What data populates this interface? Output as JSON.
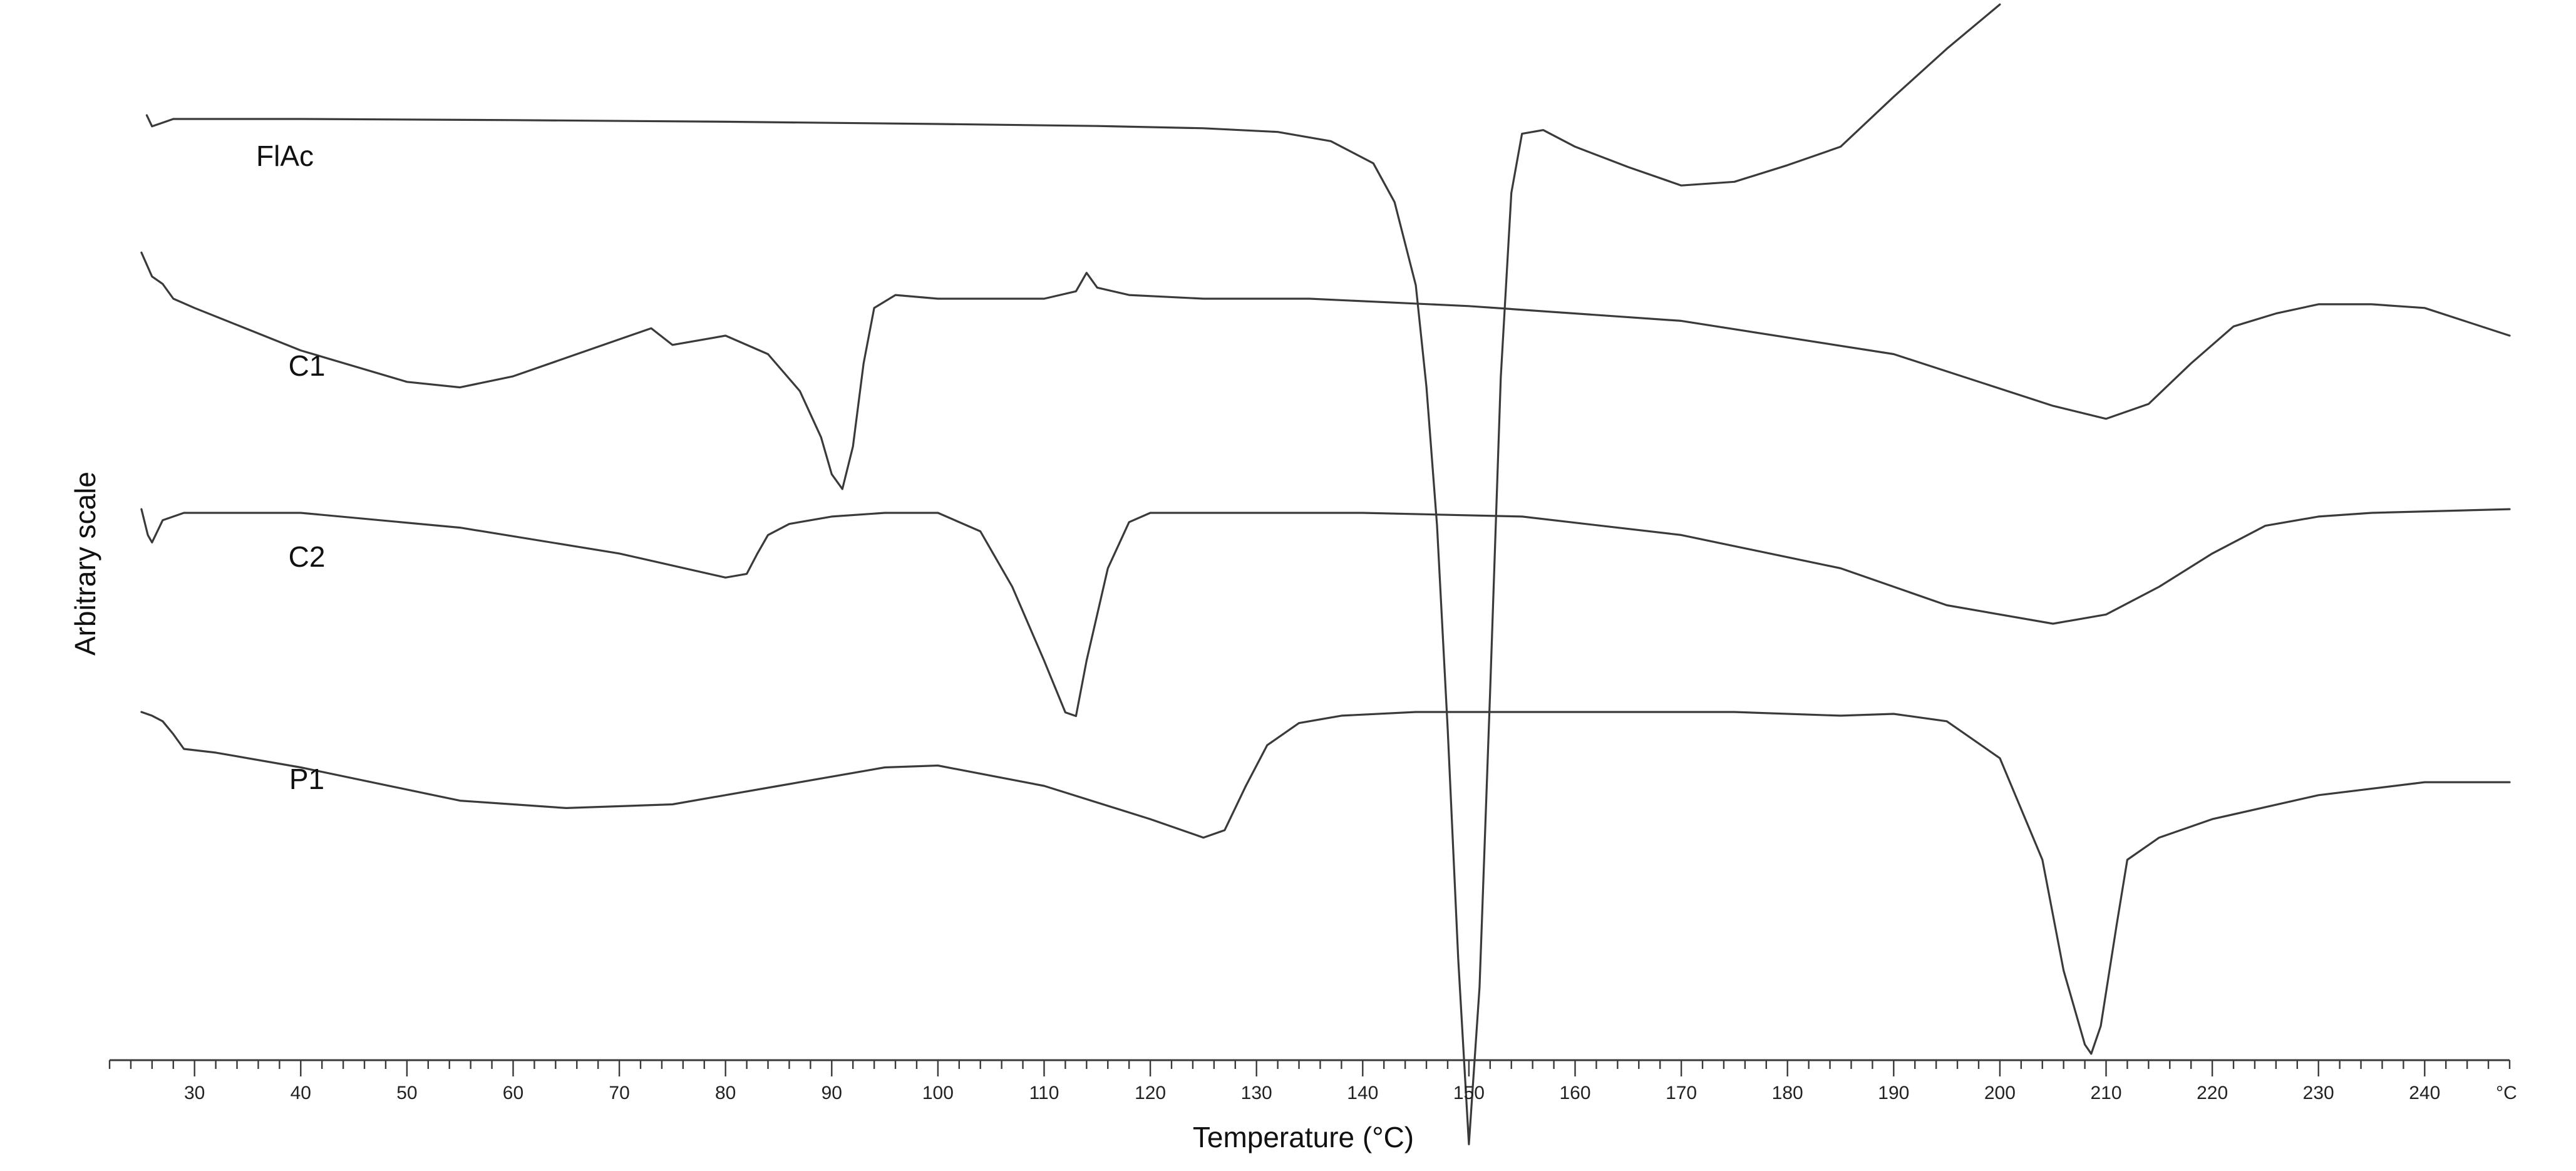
{
  "chart_data": {
    "type": "line",
    "title": "",
    "xlabel": "Temperature (°C)",
    "ylabel": "Arbitrary scale",
    "x_unit_label": "°C",
    "xlim": [
      22,
      248
    ],
    "grid": false,
    "legend": "none",
    "x_ticks": [
      30,
      40,
      50,
      60,
      70,
      80,
      90,
      100,
      110,
      120,
      130,
      140,
      150,
      160,
      170,
      180,
      190,
      200,
      210,
      220,
      230,
      240
    ],
    "series": [
      {
        "name": "FlAc",
        "points": [
          [
            25.5,
            -2
          ],
          [
            26,
            4
          ],
          [
            28,
            0
          ],
          [
            40,
            0
          ],
          [
            60,
            0.6
          ],
          [
            80,
            1.5
          ],
          [
            100,
            2.7
          ],
          [
            115,
            3.8
          ],
          [
            125,
            5
          ],
          [
            132,
            7
          ],
          [
            137,
            12
          ],
          [
            141,
            24
          ],
          [
            143,
            45
          ],
          [
            145,
            90
          ],
          [
            146,
            145
          ],
          [
            147,
            220
          ],
          [
            148,
            330
          ],
          [
            149,
            455
          ],
          [
            150,
            555
          ],
          [
            151,
            470
          ],
          [
            152,
            310
          ],
          [
            153,
            140
          ],
          [
            154,
            40
          ],
          [
            155,
            8
          ],
          [
            157,
            6
          ],
          [
            160,
            15
          ],
          [
            165,
            26
          ],
          [
            170,
            36
          ],
          [
            175,
            34
          ],
          [
            180,
            25
          ],
          [
            185,
            15
          ],
          [
            190,
            -12
          ],
          [
            195,
            -38
          ],
          [
            200,
            -62
          ]
        ]
      },
      {
        "name": "C1",
        "points": [
          [
            25,
            -25
          ],
          [
            26,
            -12
          ],
          [
            27,
            -8
          ],
          [
            28,
            0
          ],
          [
            30,
            5
          ],
          [
            40,
            28
          ],
          [
            50,
            45
          ],
          [
            55,
            48
          ],
          [
            60,
            42
          ],
          [
            70,
            22
          ],
          [
            73,
            16
          ],
          [
            75,
            25
          ],
          [
            80,
            20
          ],
          [
            84,
            30
          ],
          [
            87,
            50
          ],
          [
            89,
            75
          ],
          [
            90,
            95
          ],
          [
            91,
            103
          ],
          [
            92,
            80
          ],
          [
            93,
            35
          ],
          [
            94,
            5
          ],
          [
            96,
            -2
          ],
          [
            100,
            0
          ],
          [
            110,
            0
          ],
          [
            113,
            -4
          ],
          [
            114,
            -14
          ],
          [
            115,
            -6
          ],
          [
            118,
            -2
          ],
          [
            125,
            0
          ],
          [
            135,
            0
          ],
          [
            150,
            4
          ],
          [
            170,
            12
          ],
          [
            190,
            30
          ],
          [
            205,
            58
          ],
          [
            210,
            65
          ],
          [
            214,
            57
          ],
          [
            218,
            35
          ],
          [
            222,
            15
          ],
          [
            226,
            8
          ],
          [
            230,
            3
          ],
          [
            235,
            3
          ],
          [
            240,
            5
          ],
          [
            248,
            20
          ]
        ]
      },
      {
        "name": "C2",
        "points": [
          [
            25,
            -2
          ],
          [
            25.6,
            12
          ],
          [
            26,
            16
          ],
          [
            27,
            4
          ],
          [
            29,
            0
          ],
          [
            40,
            0
          ],
          [
            55,
            8
          ],
          [
            70,
            22
          ],
          [
            80,
            35
          ],
          [
            82,
            33
          ],
          [
            83,
            22
          ],
          [
            84,
            12
          ],
          [
            86,
            6
          ],
          [
            90,
            2
          ],
          [
            95,
            0
          ],
          [
            100,
            0
          ],
          [
            104,
            10
          ],
          [
            107,
            40
          ],
          [
            110,
            80
          ],
          [
            112,
            108
          ],
          [
            113,
            110
          ],
          [
            114,
            80
          ],
          [
            116,
            30
          ],
          [
            118,
            5
          ],
          [
            120,
            0
          ],
          [
            140,
            0
          ],
          [
            155,
            2
          ],
          [
            170,
            12
          ],
          [
            185,
            30
          ],
          [
            195,
            50
          ],
          [
            205,
            60
          ],
          [
            210,
            55
          ],
          [
            215,
            40
          ],
          [
            220,
            22
          ],
          [
            225,
            7
          ],
          [
            230,
            2
          ],
          [
            235,
            0
          ],
          [
            248,
            -2
          ]
        ]
      },
      {
        "name": "P1",
        "points": [
          [
            25,
            0
          ],
          [
            26,
            2
          ],
          [
            27,
            5
          ],
          [
            28,
            12
          ],
          [
            29,
            20
          ],
          [
            32,
            22
          ],
          [
            40,
            30
          ],
          [
            55,
            48
          ],
          [
            65,
            52
          ],
          [
            75,
            50
          ],
          [
            85,
            40
          ],
          [
            95,
            30
          ],
          [
            100,
            29
          ],
          [
            110,
            40
          ],
          [
            120,
            58
          ],
          [
            125,
            68
          ],
          [
            127,
            64
          ],
          [
            129,
            40
          ],
          [
            131,
            18
          ],
          [
            134,
            6
          ],
          [
            138,
            2
          ],
          [
            145,
            0
          ],
          [
            160,
            0
          ],
          [
            175,
            0
          ],
          [
            185,
            2
          ],
          [
            190,
            1
          ],
          [
            195,
            5
          ],
          [
            200,
            25
          ],
          [
            204,
            80
          ],
          [
            206,
            140
          ],
          [
            208,
            180
          ],
          [
            208.6,
            185
          ],
          [
            209.5,
            170
          ],
          [
            211,
            115
          ],
          [
            212,
            80
          ],
          [
            215,
            68
          ],
          [
            220,
            58
          ],
          [
            230,
            45
          ],
          [
            240,
            38
          ],
          [
            248,
            38
          ]
        ]
      }
    ]
  }
}
